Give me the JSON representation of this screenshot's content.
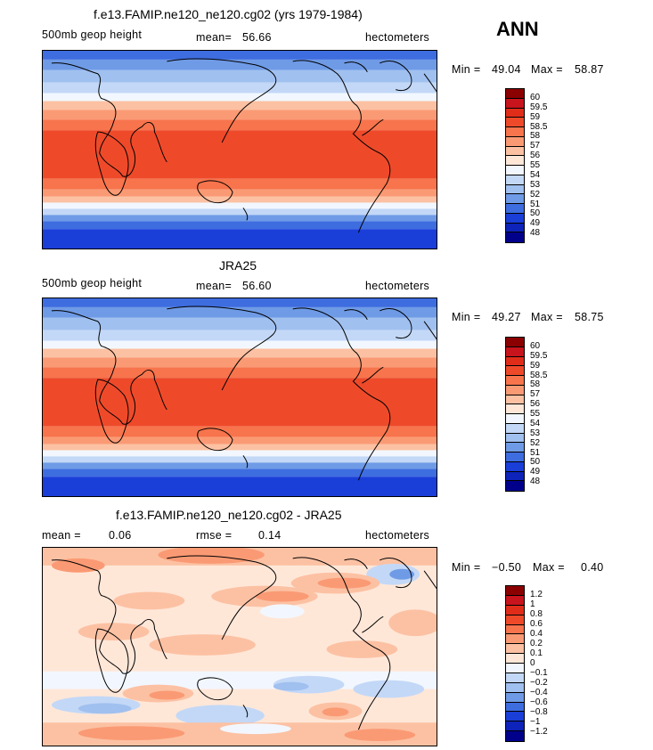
{
  "panel1": {
    "title": "f.e13.FAMIP.ne120_ne120.cg02 (yrs 1979-1984)",
    "variable": "500mb geop height",
    "mean_label": "mean=",
    "mean_value": "56.66",
    "units": "hectometers",
    "min_label": "Min =",
    "min_value": "49.04",
    "max_label": "Max =",
    "max_value": "58.87"
  },
  "season": "ANN",
  "panel2": {
    "title": "JRA25",
    "variable": "500mb geop height",
    "mean_label": "mean=",
    "mean_value": "56.60",
    "units": "hectometers",
    "min_label": "Min =",
    "min_value": "49.27",
    "max_label": "Max =",
    "max_value": "58.75"
  },
  "panel3": {
    "title": "f.e13.FAMIP.ne120_ne120.cg02 - JRA25",
    "mean_label": "mean =",
    "mean_value": "0.06",
    "rmse_label": "rmse =",
    "rmse_value": "0.14",
    "units": "hectometers",
    "min_label": "Min =",
    "min_value": "−0.50",
    "max_label": "Max =",
    "max_value": "0.40"
  },
  "legend_abs": {
    "labels": [
      "60",
      "59.5",
      "59",
      "58.5",
      "58",
      "57",
      "56",
      "55",
      "54",
      "53",
      "52",
      "51",
      "50",
      "49",
      "48"
    ],
    "colors": [
      "#8b0000",
      "#c8141c",
      "#e02d1a",
      "#ee4a2a",
      "#f7744c",
      "#fa9a74",
      "#fcc1a3",
      "#ffe7d8",
      "#f2f7ff",
      "#c3d8f7",
      "#a0c0ef",
      "#6f9be6",
      "#3e6de0",
      "#1a3ed8",
      "#0d23b9",
      "#00008b"
    ]
  },
  "legend_diff": {
    "labels": [
      "1.2",
      "1",
      "0.8",
      "0.6",
      "0.4",
      "0.2",
      "0.1",
      "0",
      "−0.1",
      "−0.2",
      "−0.4",
      "−0.6",
      "−0.8",
      "−1",
      "−1.2"
    ],
    "colors": [
      "#8b0000",
      "#c8141c",
      "#e02d1a",
      "#ee4a2a",
      "#f7744c",
      "#fa9a74",
      "#fcc1a3",
      "#ffe7d8",
      "#f2f7ff",
      "#c3d8f7",
      "#a0c0ef",
      "#6f9be6",
      "#3e6de0",
      "#1a3ed8",
      "#0d23b9",
      "#00008b"
    ]
  }
}
